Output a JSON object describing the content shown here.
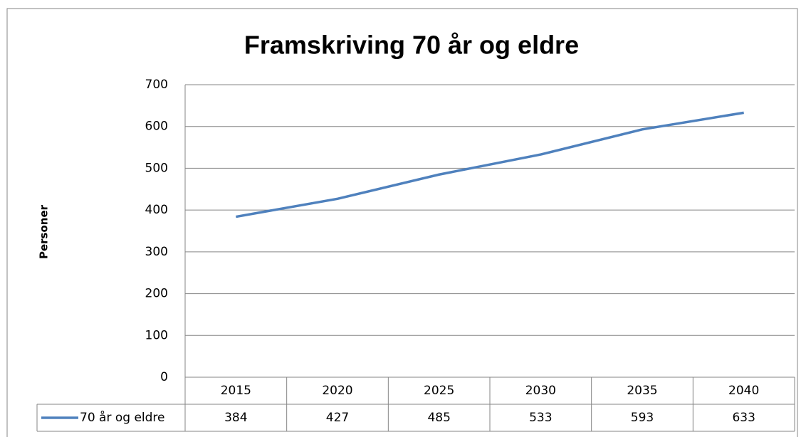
{
  "chart_data": {
    "type": "line",
    "title": "Framskriving 70 år og eldre",
    "y_label": "Personer",
    "categories": [
      "2015",
      "2020",
      "2025",
      "2030",
      "2035",
      "2040"
    ],
    "series": [
      {
        "name": "70 år og eldre",
        "color": "#4f81bd",
        "values": [
          384,
          427,
          485,
          533,
          593,
          633
        ]
      }
    ],
    "ylim": [
      0,
      700
    ],
    "yticks": [
      0,
      100,
      200,
      300,
      400,
      500,
      600,
      700
    ],
    "grid": true
  }
}
